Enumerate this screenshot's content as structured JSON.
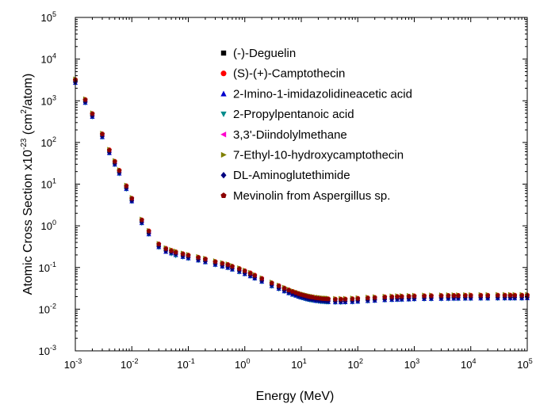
{
  "chart_data": {
    "type": "scatter",
    "x_scale": "log",
    "y_scale": "log",
    "xlim": [
      0.001,
      100000
    ],
    "ylim": [
      0.001,
      100000
    ],
    "xlabel": "Energy (MeV)",
    "ylabel": {
      "prefix": "Atomic Cross Section x10",
      "exp": "-23",
      "mid": " (cm",
      "exp2": "2",
      "suffix": "/atom)"
    },
    "x_ticks": [
      {
        "base": "10",
        "exp": "-3"
      },
      {
        "base": "10",
        "exp": "-2"
      },
      {
        "base": "10",
        "exp": "-1"
      },
      {
        "base": "10",
        "exp": "0"
      },
      {
        "base": "10",
        "exp": "1"
      },
      {
        "base": "10",
        "exp": "2"
      },
      {
        "base": "10",
        "exp": "3"
      },
      {
        "base": "10",
        "exp": "4"
      },
      {
        "base": "10",
        "exp": "5"
      }
    ],
    "y_ticks": [
      {
        "base": "10",
        "exp": "-3"
      },
      {
        "base": "10",
        "exp": "-2"
      },
      {
        "base": "10",
        "exp": "-1"
      },
      {
        "base": "10",
        "exp": "0"
      },
      {
        "base": "10",
        "exp": "1"
      },
      {
        "base": "10",
        "exp": "2"
      },
      {
        "base": "10",
        "exp": "3"
      },
      {
        "base": "10",
        "exp": "4"
      },
      {
        "base": "10",
        "exp": "5"
      }
    ],
    "grid": false,
    "legend_position": "top-right",
    "x": [
      0.001,
      0.0015,
      0.002,
      0.003,
      0.004,
      0.005,
      0.006,
      0.008,
      0.01,
      0.015,
      0.02,
      0.03,
      0.04,
      0.05,
      0.06,
      0.08,
      0.1,
      0.15,
      0.2,
      0.3,
      0.4,
      0.5,
      0.6,
      0.8,
      1,
      1.25,
      1.5,
      2,
      3,
      4,
      5,
      6,
      7,
      8,
      9,
      10,
      11,
      12,
      13,
      14,
      15,
      16,
      18,
      20,
      22,
      24,
      26,
      28,
      30,
      40,
      50,
      60,
      80,
      100,
      150,
      200,
      300,
      400,
      500,
      600,
      800,
      1000,
      1500,
      2000,
      3000,
      4000,
      5000,
      6000,
      8000,
      10000,
      15000,
      20000,
      30000,
      40000,
      50000,
      60000,
      80000,
      100000
    ],
    "series": [
      {
        "name": "(-)-Deguelin",
        "marker": "square",
        "color": "#000000",
        "factor": 1.0,
        "values": [
          3000,
          1000,
          460,
          150,
          62,
          33,
          20,
          8.5,
          4.3,
          1.3,
          0.7,
          0.34,
          0.27,
          0.24,
          0.22,
          0.2,
          0.185,
          0.165,
          0.15,
          0.13,
          0.118,
          0.11,
          0.1,
          0.088,
          0.078,
          0.069,
          0.061,
          0.051,
          0.04,
          0.034,
          0.03,
          0.027,
          0.025,
          0.0235,
          0.0222,
          0.0212,
          0.0205,
          0.0198,
          0.0193,
          0.0188,
          0.0185,
          0.0182,
          0.0177,
          0.0174,
          0.0171,
          0.0169,
          0.0168,
          0.0167,
          0.0166,
          0.0163,
          0.0163,
          0.0164,
          0.0167,
          0.017,
          0.0175,
          0.0179,
          0.0184,
          0.0187,
          0.0189,
          0.019,
          0.0192,
          0.0194,
          0.0196,
          0.0197,
          0.0198,
          0.0199,
          0.02,
          0.02,
          0.0201,
          0.0201,
          0.0202,
          0.0202,
          0.0203,
          0.0203,
          0.0203,
          0.0203,
          0.0203,
          0.0204
        ]
      },
      {
        "name": "(S)-(+)-Camptothecin",
        "marker": "circle",
        "color": "#ff0000",
        "factor": 1.08,
        "values": [
          3240,
          1080,
          497,
          162,
          67,
          35.6,
          21.6,
          9.2,
          4.6,
          1.4,
          0.76,
          0.37,
          0.29,
          0.26,
          0.24,
          0.216,
          0.2,
          0.178,
          0.162,
          0.14,
          0.127,
          0.119,
          0.108,
          0.095,
          0.084,
          0.075,
          0.066,
          0.055,
          0.043,
          0.037,
          0.0324,
          0.0292,
          0.027,
          0.0254,
          0.024,
          0.0229,
          0.0221,
          0.0214,
          0.0208,
          0.0203,
          0.02,
          0.0197,
          0.0191,
          0.0188,
          0.0185,
          0.0183,
          0.0181,
          0.018,
          0.0179,
          0.0176,
          0.0176,
          0.0177,
          0.018,
          0.0184,
          0.0189,
          0.0193,
          0.0199,
          0.0202,
          0.0204,
          0.0205,
          0.0207,
          0.021,
          0.0212,
          0.0213,
          0.0214,
          0.0215,
          0.0216,
          0.0216,
          0.0217,
          0.0217,
          0.0218,
          0.0218,
          0.0219,
          0.0219,
          0.0219,
          0.0219,
          0.0219,
          0.022
        ]
      },
      {
        "name": "2-Imino-1-imidazolidineacetic acid",
        "marker": "triangle-up",
        "color": "#0000cd",
        "factor": 0.9,
        "values": [
          2700,
          900,
          414,
          135,
          56,
          29.7,
          18,
          7.7,
          3.9,
          1.17,
          0.63,
          0.31,
          0.24,
          0.22,
          0.2,
          0.18,
          0.167,
          0.149,
          0.135,
          0.117,
          0.106,
          0.099,
          0.09,
          0.079,
          0.07,
          0.062,
          0.055,
          0.046,
          0.036,
          0.031,
          0.027,
          0.0243,
          0.0225,
          0.0212,
          0.02,
          0.0191,
          0.0185,
          0.0178,
          0.0174,
          0.0169,
          0.0167,
          0.0164,
          0.0159,
          0.0157,
          0.0154,
          0.0152,
          0.0151,
          0.015,
          0.0149,
          0.0147,
          0.0147,
          0.0148,
          0.015,
          0.0153,
          0.0158,
          0.0161,
          0.0166,
          0.0168,
          0.017,
          0.0171,
          0.0173,
          0.0175,
          0.0176,
          0.0177,
          0.0178,
          0.0179,
          0.018,
          0.018,
          0.0181,
          0.0181,
          0.0182,
          0.0182,
          0.0183,
          0.0183,
          0.0183,
          0.0183,
          0.0183,
          0.0184
        ]
      },
      {
        "name": "2-Propylpentanoic acid",
        "marker": "triangle-down",
        "color": "#008b8b",
        "factor": 0.88,
        "values": [
          2640,
          880,
          405,
          132,
          55,
          29,
          17.6,
          7.5,
          3.8,
          1.14,
          0.62,
          0.3,
          0.24,
          0.21,
          0.19,
          0.176,
          0.163,
          0.145,
          0.132,
          0.114,
          0.104,
          0.097,
          0.088,
          0.077,
          0.069,
          0.061,
          0.054,
          0.045,
          0.035,
          0.03,
          0.0264,
          0.0238,
          0.022,
          0.0207,
          0.0195,
          0.0187,
          0.018,
          0.0174,
          0.017,
          0.0165,
          0.0163,
          0.016,
          0.0156,
          0.0153,
          0.015,
          0.0149,
          0.0148,
          0.0147,
          0.0146,
          0.0143,
          0.0143,
          0.0144,
          0.0147,
          0.015,
          0.0154,
          0.0158,
          0.0162,
          0.0165,
          0.0166,
          0.0167,
          0.0169,
          0.0171,
          0.0172,
          0.0173,
          0.0174,
          0.0175,
          0.0176,
          0.0176,
          0.0177,
          0.0177,
          0.0178,
          0.0178,
          0.0179,
          0.0179,
          0.0179,
          0.0179,
          0.0179,
          0.018
        ]
      },
      {
        "name": "3,3'-Diindolylmethane",
        "marker": "triangle-left",
        "color": "#ff00cc",
        "factor": 1.02,
        "values": [
          3060,
          1020,
          469,
          153,
          63,
          33.7,
          20.4,
          8.7,
          4.4,
          1.33,
          0.71,
          0.35,
          0.28,
          0.24,
          0.22,
          0.204,
          0.189,
          0.168,
          0.153,
          0.133,
          0.12,
          0.112,
          0.102,
          0.09,
          0.08,
          0.07,
          0.062,
          0.052,
          0.041,
          0.035,
          0.0306,
          0.0275,
          0.0255,
          0.024,
          0.0226,
          0.0216,
          0.0209,
          0.0202,
          0.0197,
          0.0192,
          0.0189,
          0.0186,
          0.0181,
          0.0177,
          0.0174,
          0.0172,
          0.0171,
          0.017,
          0.0169,
          0.0166,
          0.0166,
          0.0167,
          0.017,
          0.0173,
          0.0179,
          0.0183,
          0.0188,
          0.0191,
          0.0193,
          0.0194,
          0.0196,
          0.0198,
          0.02,
          0.0201,
          0.0202,
          0.0203,
          0.0204,
          0.0204,
          0.0205,
          0.0205,
          0.0206,
          0.0206,
          0.0207,
          0.0207,
          0.0207,
          0.0207,
          0.0207,
          0.0208
        ]
      },
      {
        "name": "7-Ethyl-10-hydroxycamptothecin",
        "marker": "triangle-right",
        "color": "#808000",
        "factor": 1.12,
        "values": [
          3360,
          1120,
          515,
          168,
          69,
          37,
          22.4,
          9.5,
          4.8,
          1.46,
          0.78,
          0.38,
          0.3,
          0.27,
          0.25,
          0.224,
          0.207,
          0.185,
          0.168,
          0.146,
          0.132,
          0.123,
          0.112,
          0.099,
          0.087,
          0.077,
          0.068,
          0.057,
          0.045,
          0.038,
          0.0336,
          0.0302,
          0.028,
          0.0263,
          0.0249,
          0.0237,
          0.023,
          0.0222,
          0.0216,
          0.0211,
          0.0207,
          0.0204,
          0.0198,
          0.0195,
          0.0192,
          0.0189,
          0.0188,
          0.0187,
          0.0186,
          0.0183,
          0.0183,
          0.0184,
          0.0187,
          0.019,
          0.0196,
          0.02,
          0.0206,
          0.0209,
          0.0212,
          0.0213,
          0.0215,
          0.0217,
          0.022,
          0.0221,
          0.0222,
          0.0223,
          0.0224,
          0.0224,
          0.0225,
          0.0225,
          0.0226,
          0.0226,
          0.0227,
          0.0227,
          0.0227,
          0.0227,
          0.0227,
          0.0228
        ]
      },
      {
        "name": "DL-Aminoglutethimide",
        "marker": "diamond",
        "color": "#000080",
        "factor": 0.94,
        "values": [
          2820,
          940,
          432,
          141,
          58,
          31,
          18.8,
          8,
          4,
          1.22,
          0.66,
          0.32,
          0.25,
          0.23,
          0.21,
          0.188,
          0.174,
          0.155,
          0.141,
          0.122,
          0.111,
          0.103,
          0.094,
          0.083,
          0.073,
          0.065,
          0.057,
          0.048,
          0.038,
          0.032,
          0.0282,
          0.0254,
          0.0235,
          0.0221,
          0.0209,
          0.0199,
          0.0193,
          0.0186,
          0.0181,
          0.0177,
          0.0174,
          0.0171,
          0.0166,
          0.0164,
          0.0161,
          0.0159,
          0.0158,
          0.0157,
          0.0156,
          0.0153,
          0.0153,
          0.0154,
          0.0157,
          0.016,
          0.0165,
          0.0168,
          0.0173,
          0.0176,
          0.0178,
          0.0179,
          0.018,
          0.0182,
          0.0184,
          0.0185,
          0.0186,
          0.0187,
          0.0188,
          0.0188,
          0.0189,
          0.0189,
          0.019,
          0.019,
          0.0191,
          0.0191,
          0.0191,
          0.0191,
          0.0191,
          0.0192
        ]
      },
      {
        "name": "Mevinolin from Aspergillus sp.",
        "marker": "pentagon",
        "color": "#8b0000",
        "factor": 1.05,
        "values": [
          3150,
          1050,
          483,
          158,
          65,
          34.7,
          21,
          8.9,
          4.5,
          1.37,
          0.74,
          0.36,
          0.28,
          0.25,
          0.23,
          0.21,
          0.194,
          0.173,
          0.158,
          0.137,
          0.124,
          0.116,
          0.105,
          0.092,
          0.082,
          0.072,
          0.064,
          0.054,
          0.042,
          0.036,
          0.0315,
          0.0284,
          0.0263,
          0.0247,
          0.0233,
          0.0223,
          0.0215,
          0.0208,
          0.0203,
          0.0197,
          0.0194,
          0.0191,
          0.0186,
          0.0183,
          0.018,
          0.0177,
          0.0176,
          0.0175,
          0.0174,
          0.0171,
          0.0171,
          0.0172,
          0.0175,
          0.0179,
          0.0184,
          0.0188,
          0.0193,
          0.0196,
          0.0198,
          0.02,
          0.0202,
          0.0204,
          0.0206,
          0.0207,
          0.0208,
          0.0209,
          0.021,
          0.021,
          0.0211,
          0.0211,
          0.0212,
          0.0212,
          0.0213,
          0.0213,
          0.0213,
          0.0213,
          0.0213,
          0.0214
        ]
      }
    ]
  }
}
